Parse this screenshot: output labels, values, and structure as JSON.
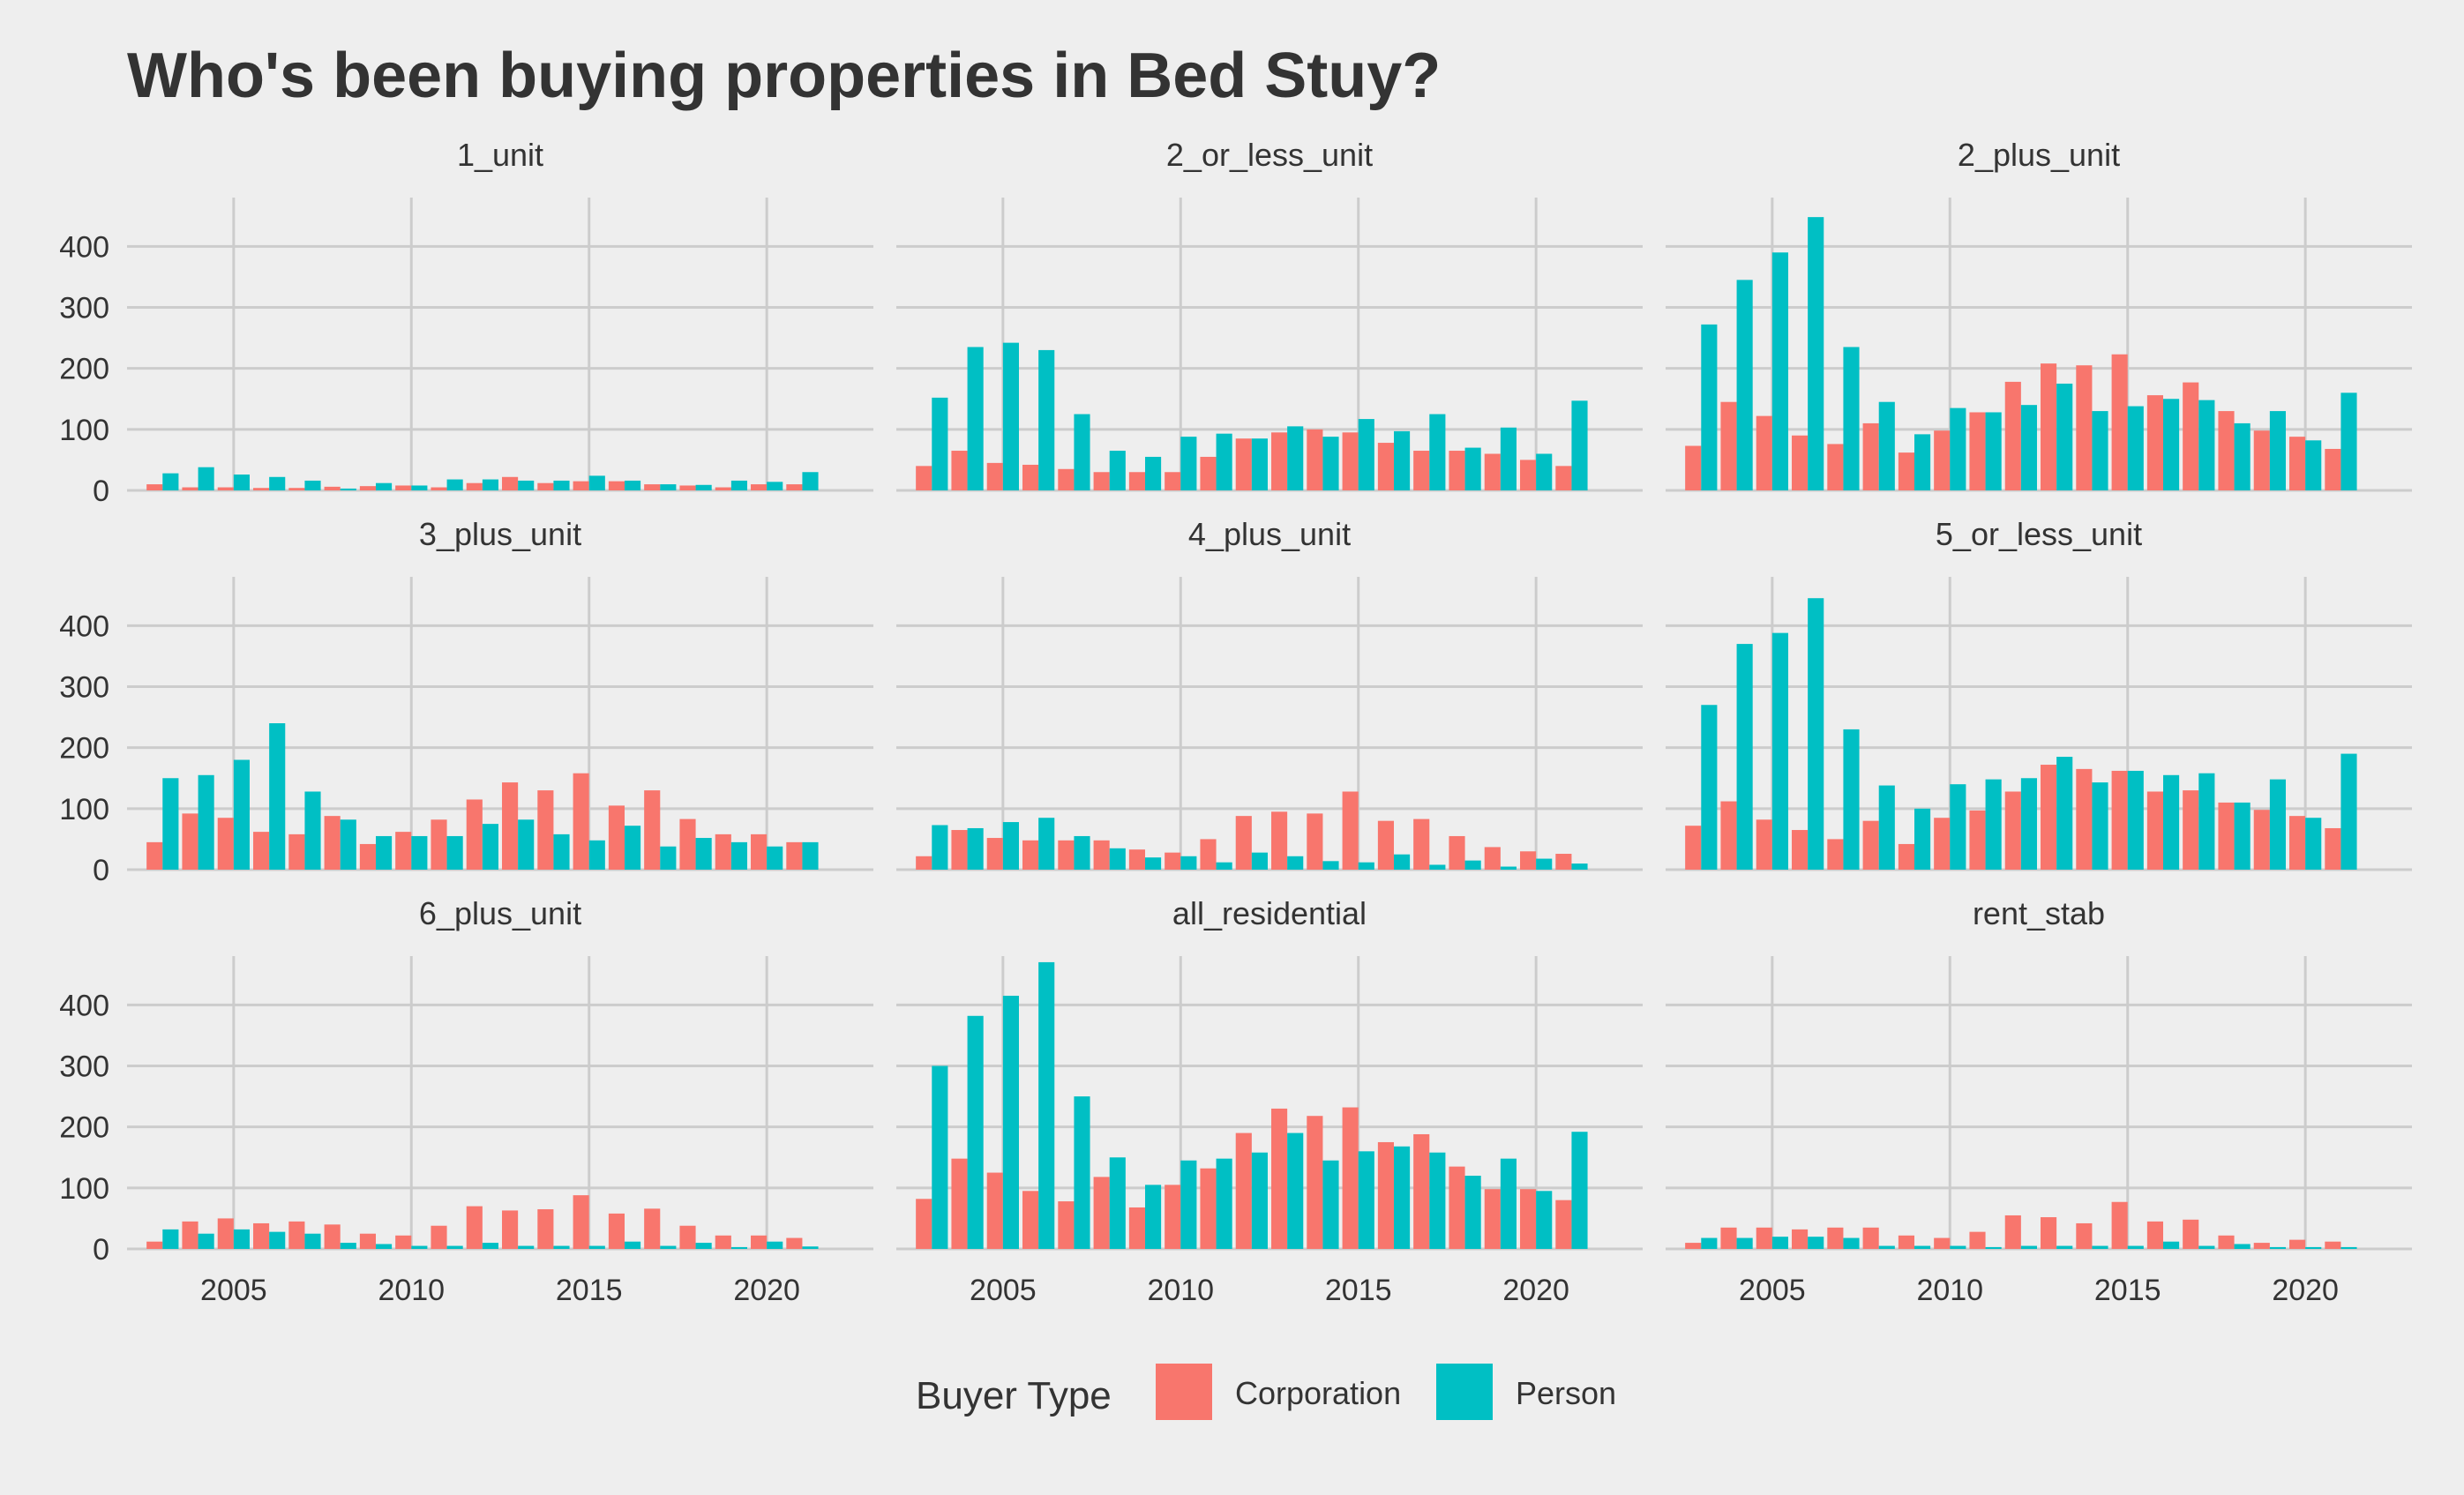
{
  "chart_data": {
    "type": "bar",
    "title": "Who's been buying properties in Bed Stuy?",
    "xlabel": "",
    "ylabel": "",
    "legend_title": "Buyer Type",
    "legend_position": "bottom",
    "grid": true,
    "xlim": [
      2002,
      2023
    ],
    "ylim": [
      0,
      480
    ],
    "x_ticks": [
      2005,
      2010,
      2015,
      2020
    ],
    "y_ticks": [
      0,
      100,
      200,
      300,
      400
    ],
    "x": [
      2003,
      2004,
      2005,
      2006,
      2007,
      2008,
      2009,
      2010,
      2011,
      2012,
      2013,
      2014,
      2015,
      2016,
      2017,
      2018,
      2019,
      2020,
      2021,
      2022
    ],
    "series_colors": {
      "Corporation": "#F8766D",
      "Person": "#00BFC4"
    },
    "facets": [
      {
        "name": "1_unit",
        "series": [
          {
            "name": "Corporation",
            "values": [
              10,
              5,
              5,
              4,
              4,
              6,
              7,
              8,
              5,
              12,
              22,
              12,
              15,
              15,
              10,
              8,
              5,
              10,
              10,
              0
            ]
          },
          {
            "name": "Person",
            "values": [
              28,
              38,
              26,
              22,
              16,
              3,
              12,
              8,
              18,
              18,
              16,
              16,
              24,
              16,
              10,
              9,
              16,
              14,
              30,
              0
            ]
          }
        ]
      },
      {
        "name": "2_or_less_unit",
        "series": [
          {
            "name": "Corporation",
            "values": [
              40,
              65,
              45,
              42,
              35,
              30,
              30,
              30,
              55,
              85,
              95,
              100,
              95,
              78,
              65,
              65,
              60,
              50,
              40,
              0
            ]
          },
          {
            "name": "Person",
            "values": [
              152,
              235,
              242,
              230,
              125,
              65,
              55,
              88,
              93,
              85,
              105,
              88,
              117,
              97,
              125,
              70,
              103,
              60,
              147,
              0
            ]
          }
        ]
      },
      {
        "name": "2_plus_unit",
        "series": [
          {
            "name": "Corporation",
            "values": [
              73,
              145,
              122,
              90,
              76,
              110,
              62,
              98,
              128,
              178,
              208,
              205,
              223,
              156,
              177,
              130,
              98,
              88,
              68,
              0
            ]
          },
          {
            "name": "Person",
            "values": [
              272,
              345,
              390,
              448,
              235,
              145,
              92,
              135,
              128,
              140,
              175,
              130,
              138,
              150,
              148,
              110,
              130,
              82,
              160,
              0
            ]
          }
        ]
      },
      {
        "name": "3_plus_unit",
        "series": [
          {
            "name": "Corporation",
            "values": [
              45,
              92,
              85,
              62,
              58,
              88,
              42,
              62,
              82,
              115,
              143,
              130,
              158,
              105,
              130,
              83,
              58,
              58,
              45,
              0
            ]
          },
          {
            "name": "Person",
            "values": [
              150,
              155,
              180,
              240,
              128,
              82,
              55,
              55,
              55,
              75,
              82,
              58,
              48,
              72,
              38,
              52,
              45,
              38,
              45,
              0
            ]
          }
        ]
      },
      {
        "name": "4_plus_unit",
        "series": [
          {
            "name": "Corporation",
            "values": [
              22,
              65,
              52,
              48,
              48,
              48,
              33,
              28,
              50,
              88,
              95,
              92,
              128,
              80,
              83,
              55,
              37,
              30,
              26,
              0
            ]
          },
          {
            "name": "Person",
            "values": [
              73,
              68,
              78,
              85,
              55,
              35,
              20,
              22,
              12,
              28,
              22,
              14,
              12,
              25,
              8,
              15,
              5,
              18,
              10,
              0
            ]
          }
        ]
      },
      {
        "name": "5_or_less_unit",
        "series": [
          {
            "name": "Corporation",
            "values": [
              72,
              112,
              82,
              65,
              50,
              80,
              42,
              85,
              97,
              128,
              172,
              165,
              162,
              128,
              130,
              110,
              98,
              88,
              68,
              0
            ]
          },
          {
            "name": "Person",
            "values": [
              270,
              370,
              388,
              445,
              230,
              138,
              100,
              140,
              148,
              150,
              185,
              143,
              162,
              155,
              158,
              110,
              148,
              85,
              190,
              0
            ]
          }
        ]
      },
      {
        "name": "6_plus_unit",
        "series": [
          {
            "name": "Corporation",
            "values": [
              12,
              45,
              50,
              42,
              45,
              40,
              25,
              22,
              38,
              70,
              63,
              65,
              88,
              58,
              66,
              38,
              22,
              22,
              18,
              0
            ]
          },
          {
            "name": "Person",
            "values": [
              32,
              25,
              32,
              28,
              25,
              10,
              8,
              5,
              5,
              10,
              5,
              5,
              5,
              12,
              5,
              10,
              3,
              12,
              4,
              0
            ]
          }
        ]
      },
      {
        "name": "all_residential",
        "series": [
          {
            "name": "Corporation",
            "values": [
              82,
              148,
              125,
              95,
              78,
              118,
              68,
              105,
              132,
              190,
              230,
              218,
              232,
              175,
              188,
              135,
              98,
              98,
              80,
              0
            ]
          },
          {
            "name": "Person",
            "values": [
              300,
              382,
              415,
              470,
              250,
              150,
              105,
              145,
              148,
              158,
              190,
              145,
              160,
              168,
              158,
              120,
              148,
              95,
              192,
              0
            ]
          }
        ]
      },
      {
        "name": "rent_stab",
        "series": [
          {
            "name": "Corporation",
            "values": [
              10,
              35,
              35,
              32,
              35,
              35,
              22,
              18,
              28,
              55,
              52,
              42,
              77,
              45,
              48,
              22,
              10,
              15,
              12,
              0
            ]
          },
          {
            "name": "Person",
            "values": [
              18,
              18,
              20,
              20,
              18,
              5,
              5,
              5,
              3,
              5,
              5,
              5,
              5,
              12,
              5,
              8,
              3,
              3,
              3,
              0
            ]
          }
        ]
      }
    ]
  }
}
